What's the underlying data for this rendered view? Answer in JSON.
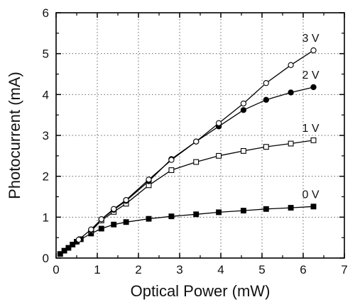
{
  "chart_data": {
    "type": "line",
    "title": "",
    "xlabel": "Optical Power (mW)",
    "ylabel": "Photocurrent (mA)",
    "xlim": [
      0,
      7
    ],
    "ylim": [
      0,
      6
    ],
    "xticks": [
      "0",
      "1",
      "2",
      "3",
      "4",
      "5",
      "6",
      "7"
    ],
    "yticks": [
      "0",
      "1",
      "2",
      "3",
      "4",
      "5",
      "6"
    ],
    "grid": true,
    "series": [
      {
        "name": "0 V",
        "marker": "filled-square",
        "x": [
          0.1,
          0.2,
          0.3,
          0.4,
          0.5,
          0.6,
          0.85,
          1.1,
          1.4,
          1.7,
          2.25,
          2.8,
          3.4,
          3.95,
          4.55,
          5.1,
          5.7,
          6.25
        ],
        "y": [
          0.1,
          0.18,
          0.25,
          0.33,
          0.4,
          0.46,
          0.6,
          0.72,
          0.82,
          0.88,
          0.96,
          1.02,
          1.07,
          1.12,
          1.16,
          1.2,
          1.23,
          1.26
        ]
      },
      {
        "name": "1 V",
        "marker": "open-square",
        "x": [
          0.85,
          1.1,
          1.4,
          1.7,
          2.25,
          2.8,
          3.4,
          3.95,
          4.55,
          5.1,
          5.7,
          6.25
        ],
        "y": [
          0.66,
          0.92,
          1.13,
          1.33,
          1.78,
          2.15,
          2.35,
          2.5,
          2.62,
          2.72,
          2.8,
          2.88
        ]
      },
      {
        "name": "2 V",
        "marker": "filled-circle",
        "x": [
          0.85,
          1.1,
          1.4,
          1.7,
          2.25,
          2.8,
          3.4,
          3.95,
          4.55,
          5.1,
          5.7,
          6.25
        ],
        "y": [
          0.68,
          0.95,
          1.18,
          1.4,
          1.88,
          2.42,
          2.85,
          3.22,
          3.62,
          3.87,
          4.05,
          4.18
        ]
      },
      {
        "name": "3 V",
        "marker": "open-circle",
        "x": [
          0.55,
          0.85,
          1.1,
          1.4,
          1.7,
          2.25,
          2.8,
          3.4,
          3.95,
          4.55,
          5.1,
          5.7,
          6.25
        ],
        "y": [
          0.45,
          0.7,
          0.95,
          1.2,
          1.42,
          1.92,
          2.4,
          2.85,
          3.3,
          3.78,
          4.28,
          4.72,
          5.08
        ]
      }
    ]
  }
}
